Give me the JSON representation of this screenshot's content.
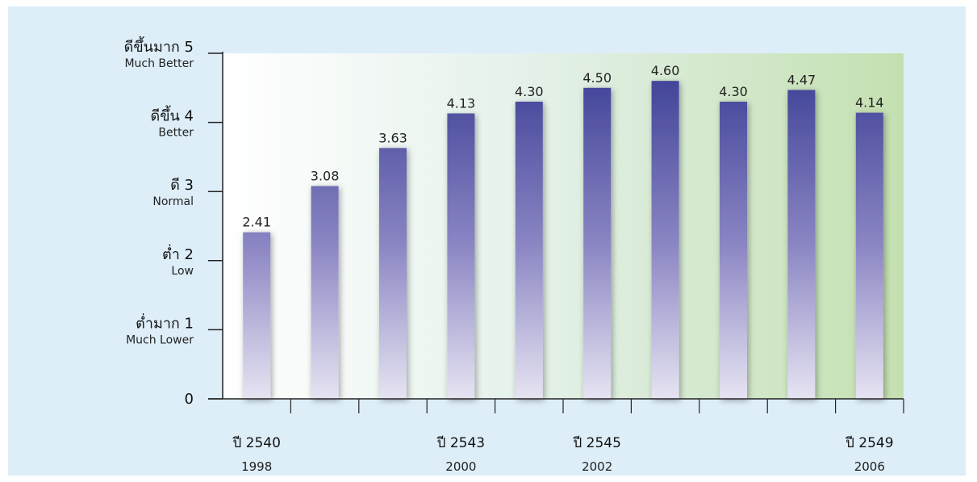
{
  "chart_data": {
    "type": "bar",
    "title": "",
    "xlabel": "",
    "ylabel": "",
    "ylim": [
      0,
      5
    ],
    "y_ticks": [
      {
        "value": 0,
        "label": "0",
        "sublabel": ""
      },
      {
        "value": 1,
        "label": "ต่ำมาก 1",
        "sublabel": "Much Lower"
      },
      {
        "value": 2,
        "label": "ต่ำ 2",
        "sublabel": "Low"
      },
      {
        "value": 3,
        "label": "ดี 3",
        "sublabel": "Normal"
      },
      {
        "value": 4,
        "label": "ดีขึ้น 4",
        "sublabel": "Better"
      },
      {
        "value": 5,
        "label": "ดีขึ้นมาก 5",
        "sublabel": "Much Better"
      }
    ],
    "categories": [
      "",
      "",
      "",
      "",
      "",
      "",
      "",
      "",
      "",
      ""
    ],
    "values": [
      2.41,
      3.08,
      3.63,
      4.13,
      4.3,
      4.5,
      4.6,
      4.3,
      4.47,
      4.14
    ],
    "data_labels": [
      "2.41",
      "3.08",
      "3.63",
      "4.13",
      "4.30",
      "4.50",
      "4.60",
      "4.30",
      "4.47",
      "4.14"
    ],
    "x_tick_labels": [
      {
        "index": 0,
        "label": "ปี 2540",
        "sublabel": "1998"
      },
      {
        "index": 3,
        "label": "ปี 2543",
        "sublabel": "2000"
      },
      {
        "index": 5,
        "label": "ปี 2545",
        "sublabel": "2002"
      },
      {
        "index": 9,
        "label": "ปี 2549",
        "sublabel": "2006"
      }
    ],
    "grid": false,
    "legend": "none"
  },
  "colors": {
    "panel_background": "#ddeef9",
    "plot_gradient_left": "#ffffff",
    "plot_gradient_right": "#c4e0b0",
    "bar_top": "#363a92",
    "bar_bottom": "#e6e4f2",
    "axis": "#222222"
  }
}
